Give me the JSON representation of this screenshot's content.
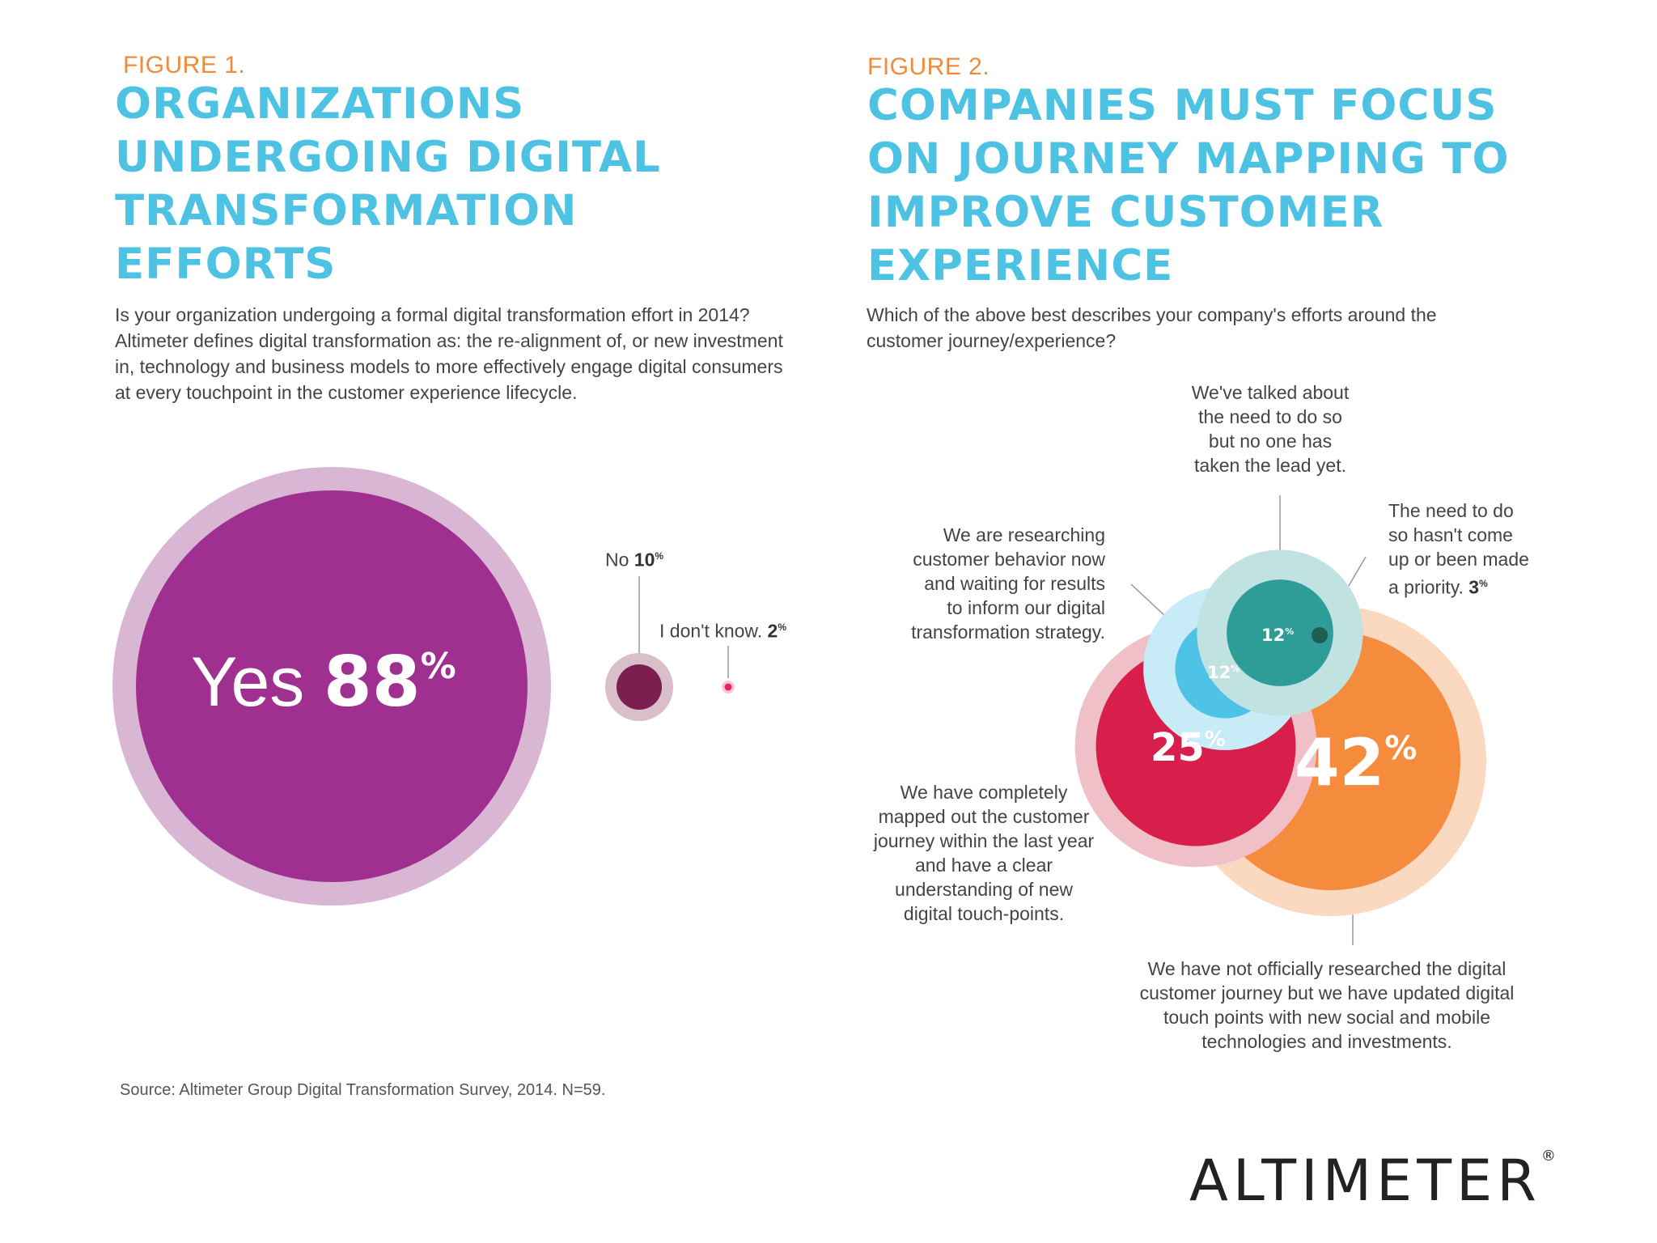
{
  "figure1": {
    "label": "FIGURE 1.",
    "title": "ORGANIZATIONS\nUNDERGOING DIGITAL\nTRANSFORMATION\nEFFORTS",
    "question": "Is your organization undergoing a formal digital transformation effort in 2014? Altimeter defines digital transformation as: the re-alignment of, or new investment in, technology and business models to more effectively engage digital consumers at every touchpoint in the customer experience lifecycle."
  },
  "figure2": {
    "label": "FIGURE 2.",
    "title": "COMPANIES MUST FOCUS\nON JOURNEY MAPPING TO\nIMPROVE CUSTOMER\nEXPERIENCE",
    "question": "Which of the above best describes your company's efforts around the customer journey/experience?"
  },
  "chart_data": [
    {
      "type": "bubble",
      "title": "ORGANIZATIONS UNDERGOING DIGITAL TRANSFORMATION EFFORTS",
      "categories": [
        "Yes",
        "No",
        "I don't know."
      ],
      "values": [
        88,
        10,
        2
      ],
      "unit": "%",
      "colors": [
        "#a0308f",
        "#7a1f4e",
        "#e8245c"
      ],
      "ring_colors": [
        "#d8b6d4",
        "#d9bfc9",
        "#f6c9d3"
      ]
    },
    {
      "type": "bubble",
      "title": "COMPANIES MUST FOCUS ON JOURNEY MAPPING TO IMPROVE CUSTOMER EXPERIENCE",
      "categories": [
        "We have not officially researched the digital customer journey but we have updated digital touch points with new social and mobile technologies and investments.",
        "We have completely mapped out the customer journey within the last year and have a clear understanding of new digital touch-points.",
        "We are researching customer behavior now and waiting for results to inform our digital transformation strategy.",
        "We've talked about the need to do so but no one has taken the lead yet.",
        "The need to do so hasn't come up or been made a priority."
      ],
      "values": [
        42,
        25,
        12,
        12,
        3
      ],
      "unit": "%",
      "colors": [
        "#f58b3c",
        "#d81f4b",
        "#4ec3e6",
        "#2e9c97",
        "#1e5e57"
      ],
      "ring_colors": [
        "#fbd8c0",
        "#f0c0c8",
        "#c7ecf7",
        "#c0e2e0",
        "#bfd6d3"
      ]
    }
  ],
  "labels": {
    "yes_word": "Yes",
    "yes_value": "88",
    "no_word": "No",
    "no_value": "10",
    "idk_word": "I don't know.",
    "idk_value": "2",
    "pct": "%",
    "v42": "42",
    "v25": "25",
    "v12a": "12",
    "v12b": "12",
    "v3": "3",
    "talked": "We've talked about\nthe need to do so\nbut no one has\ntaken the lead yet.",
    "priority": "The need to do\nso hasn't come\nup or been made\na priority.",
    "researching": "We are researching\ncustomer behavior now\nand waiting for results\nto inform our digital\ntransformation strategy.",
    "mapped": "We have completely\nmapped out the customer\njourney within the last year\nand have a clear\nunderstanding of new\ndigital touch-points.",
    "notresearched": "We have not officially researched the digital\ncustomer journey but we have updated digital\ntouch points with new social and mobile\ntechnologies and investments."
  },
  "source": "Source: Altimeter Group Digital Transformation Survey, 2014. N=59.",
  "brand": {
    "logo": "ALTIMETER",
    "reg": "®"
  }
}
